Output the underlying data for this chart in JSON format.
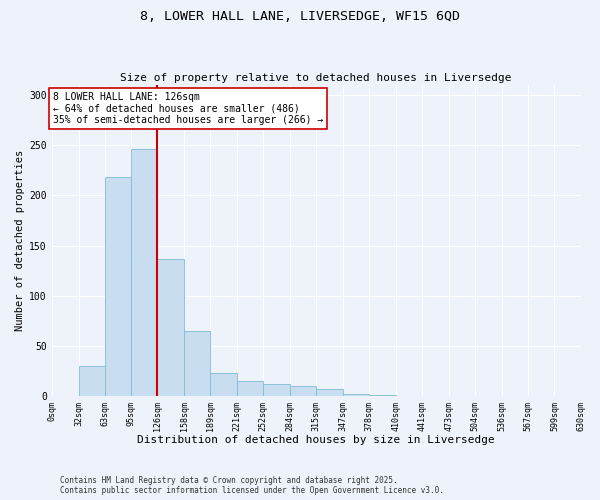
{
  "title1": "8, LOWER HALL LANE, LIVERSEDGE, WF15 6QD",
  "title2": "Size of property relative to detached houses in Liversedge",
  "xlabel": "Distribution of detached houses by size in Liversedge",
  "ylabel": "Number of detached properties",
  "bin_edges": [
    0,
    32,
    63,
    95,
    126,
    158,
    189,
    221,
    252,
    284,
    315,
    347,
    378,
    410,
    441,
    473,
    504,
    536,
    567,
    599,
    630
  ],
  "counts": [
    0,
    30,
    218,
    246,
    137,
    65,
    23,
    15,
    12,
    10,
    7,
    2,
    1,
    0,
    0,
    0,
    0,
    0,
    0,
    0
  ],
  "bar_color": "#c8ddf0",
  "bar_edge_color": "#7fbcd4",
  "vline_x": 126,
  "vline_color": "#cc0000",
  "annotation_title": "8 LOWER HALL LANE: 126sqm",
  "annotation_line1": "← 64% of detached houses are smaller (486)",
  "annotation_line2": "35% of semi-detached houses are larger (266) →",
  "annotation_box_color": "#ffffff",
  "annotation_box_edge": "#cc0000",
  "ylim": [
    0,
    310
  ],
  "yticks": [
    0,
    50,
    100,
    150,
    200,
    250,
    300
  ],
  "tick_labels": [
    "0sqm",
    "32sqm",
    "63sqm",
    "95sqm",
    "126sqm",
    "158sqm",
    "189sqm",
    "221sqm",
    "252sqm",
    "284sqm",
    "315sqm",
    "347sqm",
    "378sqm",
    "410sqm",
    "441sqm",
    "473sqm",
    "504sqm",
    "536sqm",
    "567sqm",
    "599sqm",
    "630sqm"
  ],
  "footer1": "Contains HM Land Registry data © Crown copyright and database right 2025.",
  "footer2": "Contains public sector information licensed under the Open Government Licence v3.0.",
  "background_color": "#eef2fb",
  "grid_color": "#ffffff",
  "title1_fontsize": 9.5,
  "title2_fontsize": 8,
  "xlabel_fontsize": 8,
  "ylabel_fontsize": 7.5,
  "tick_fontsize": 6,
  "annotation_fontsize": 7,
  "footer_fontsize": 5.5
}
